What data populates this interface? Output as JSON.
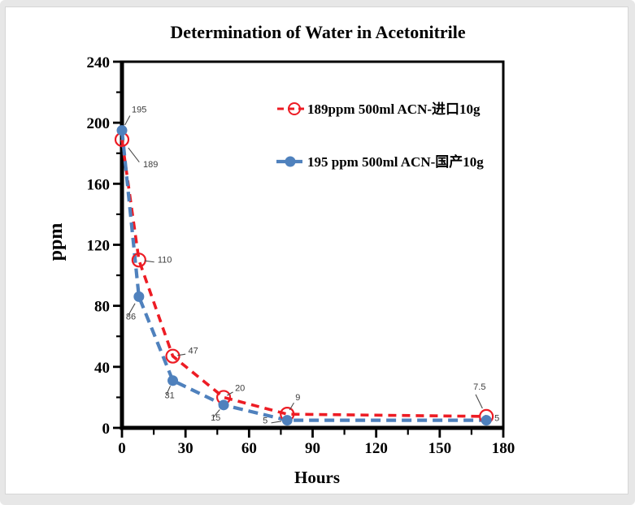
{
  "window": {
    "background": "#e7e7e7",
    "card_background": "#ffffff",
    "card_border": "#d6d6d6"
  },
  "chart_data": {
    "type": "line",
    "title": "Determination of Water in Acetonitrile",
    "xlabel": "Hours",
    "ylabel": "ppm",
    "xlim": [
      0,
      180
    ],
    "ylim": [
      0,
      240
    ],
    "x_major_ticks": [
      0,
      30,
      60,
      90,
      120,
      150,
      180
    ],
    "x_minor_step": 15,
    "y_major_ticks": [
      0,
      40,
      80,
      120,
      160,
      200,
      240
    ],
    "y_minor_step": 20,
    "grid": false,
    "legend_position": "inside-top-right",
    "axis_color": "#000000",
    "data_label_color": "#3d3d3d",
    "leader_line_color": "#4a4a4a",
    "series": [
      {
        "name": "189ppm  500ml ACN-进口10g",
        "color": "#ED1C24",
        "line_style": "dashed",
        "dash": "10 7",
        "line_width": 3.6,
        "marker": "open-circle",
        "marker_size": 8,
        "points": [
          {
            "x": 0,
            "y": 189,
            "label": "189",
            "ldx": 26,
            "ldy": 34,
            "anchor": "start",
            "leader": true
          },
          {
            "x": 8,
            "y": 110,
            "label": "110",
            "ldx": 23,
            "ldy": 3,
            "anchor": "start",
            "leader": true
          },
          {
            "x": 24,
            "y": 47,
            "label": "47",
            "ldx": 19,
            "ldy": -3,
            "anchor": "start",
            "leader": true
          },
          {
            "x": 48,
            "y": 20,
            "label": "20",
            "ldx": 14,
            "ldy": -8,
            "anchor": "start",
            "leader": true
          },
          {
            "x": 78,
            "y": 9,
            "label": "9",
            "ldx": 10,
            "ldy": -17,
            "anchor": "start",
            "leader": true
          },
          {
            "x": 172,
            "y": 7.5,
            "label": "7.5",
            "ldx": -16,
            "ldy": -33,
            "anchor": "start",
            "leader": true
          }
        ]
      },
      {
        "name": "195 ppm 500ml ACN-国产10g",
        "color": "#4F81BD",
        "line_style": "dashed",
        "dash": "12 7",
        "line_width": 4.2,
        "marker": "filled-circle",
        "marker_size": 6.5,
        "points": [
          {
            "x": 0,
            "y": 195,
            "label": "195",
            "ldx": 12,
            "ldy": -22,
            "anchor": "start",
            "leader": true
          },
          {
            "x": 8,
            "y": 86,
            "label": "86",
            "ldx": -16,
            "ldy": 28,
            "anchor": "start",
            "leader": true
          },
          {
            "x": 24,
            "y": 31,
            "label": "31",
            "ldx": -10,
            "ldy": 22,
            "anchor": "start",
            "leader": true
          },
          {
            "x": 48,
            "y": 15,
            "label": "15",
            "ldx": -16,
            "ldy": 19,
            "anchor": "start",
            "leader": true
          },
          {
            "x": 78,
            "y": 5,
            "label": "5",
            "ldx": -24,
            "ldy": 4,
            "anchor": "end",
            "leader": true
          },
          {
            "x": 172,
            "y": 5,
            "label": "5",
            "ldx": 10,
            "ldy": 1,
            "anchor": "start",
            "leader": false
          }
        ]
      }
    ]
  }
}
